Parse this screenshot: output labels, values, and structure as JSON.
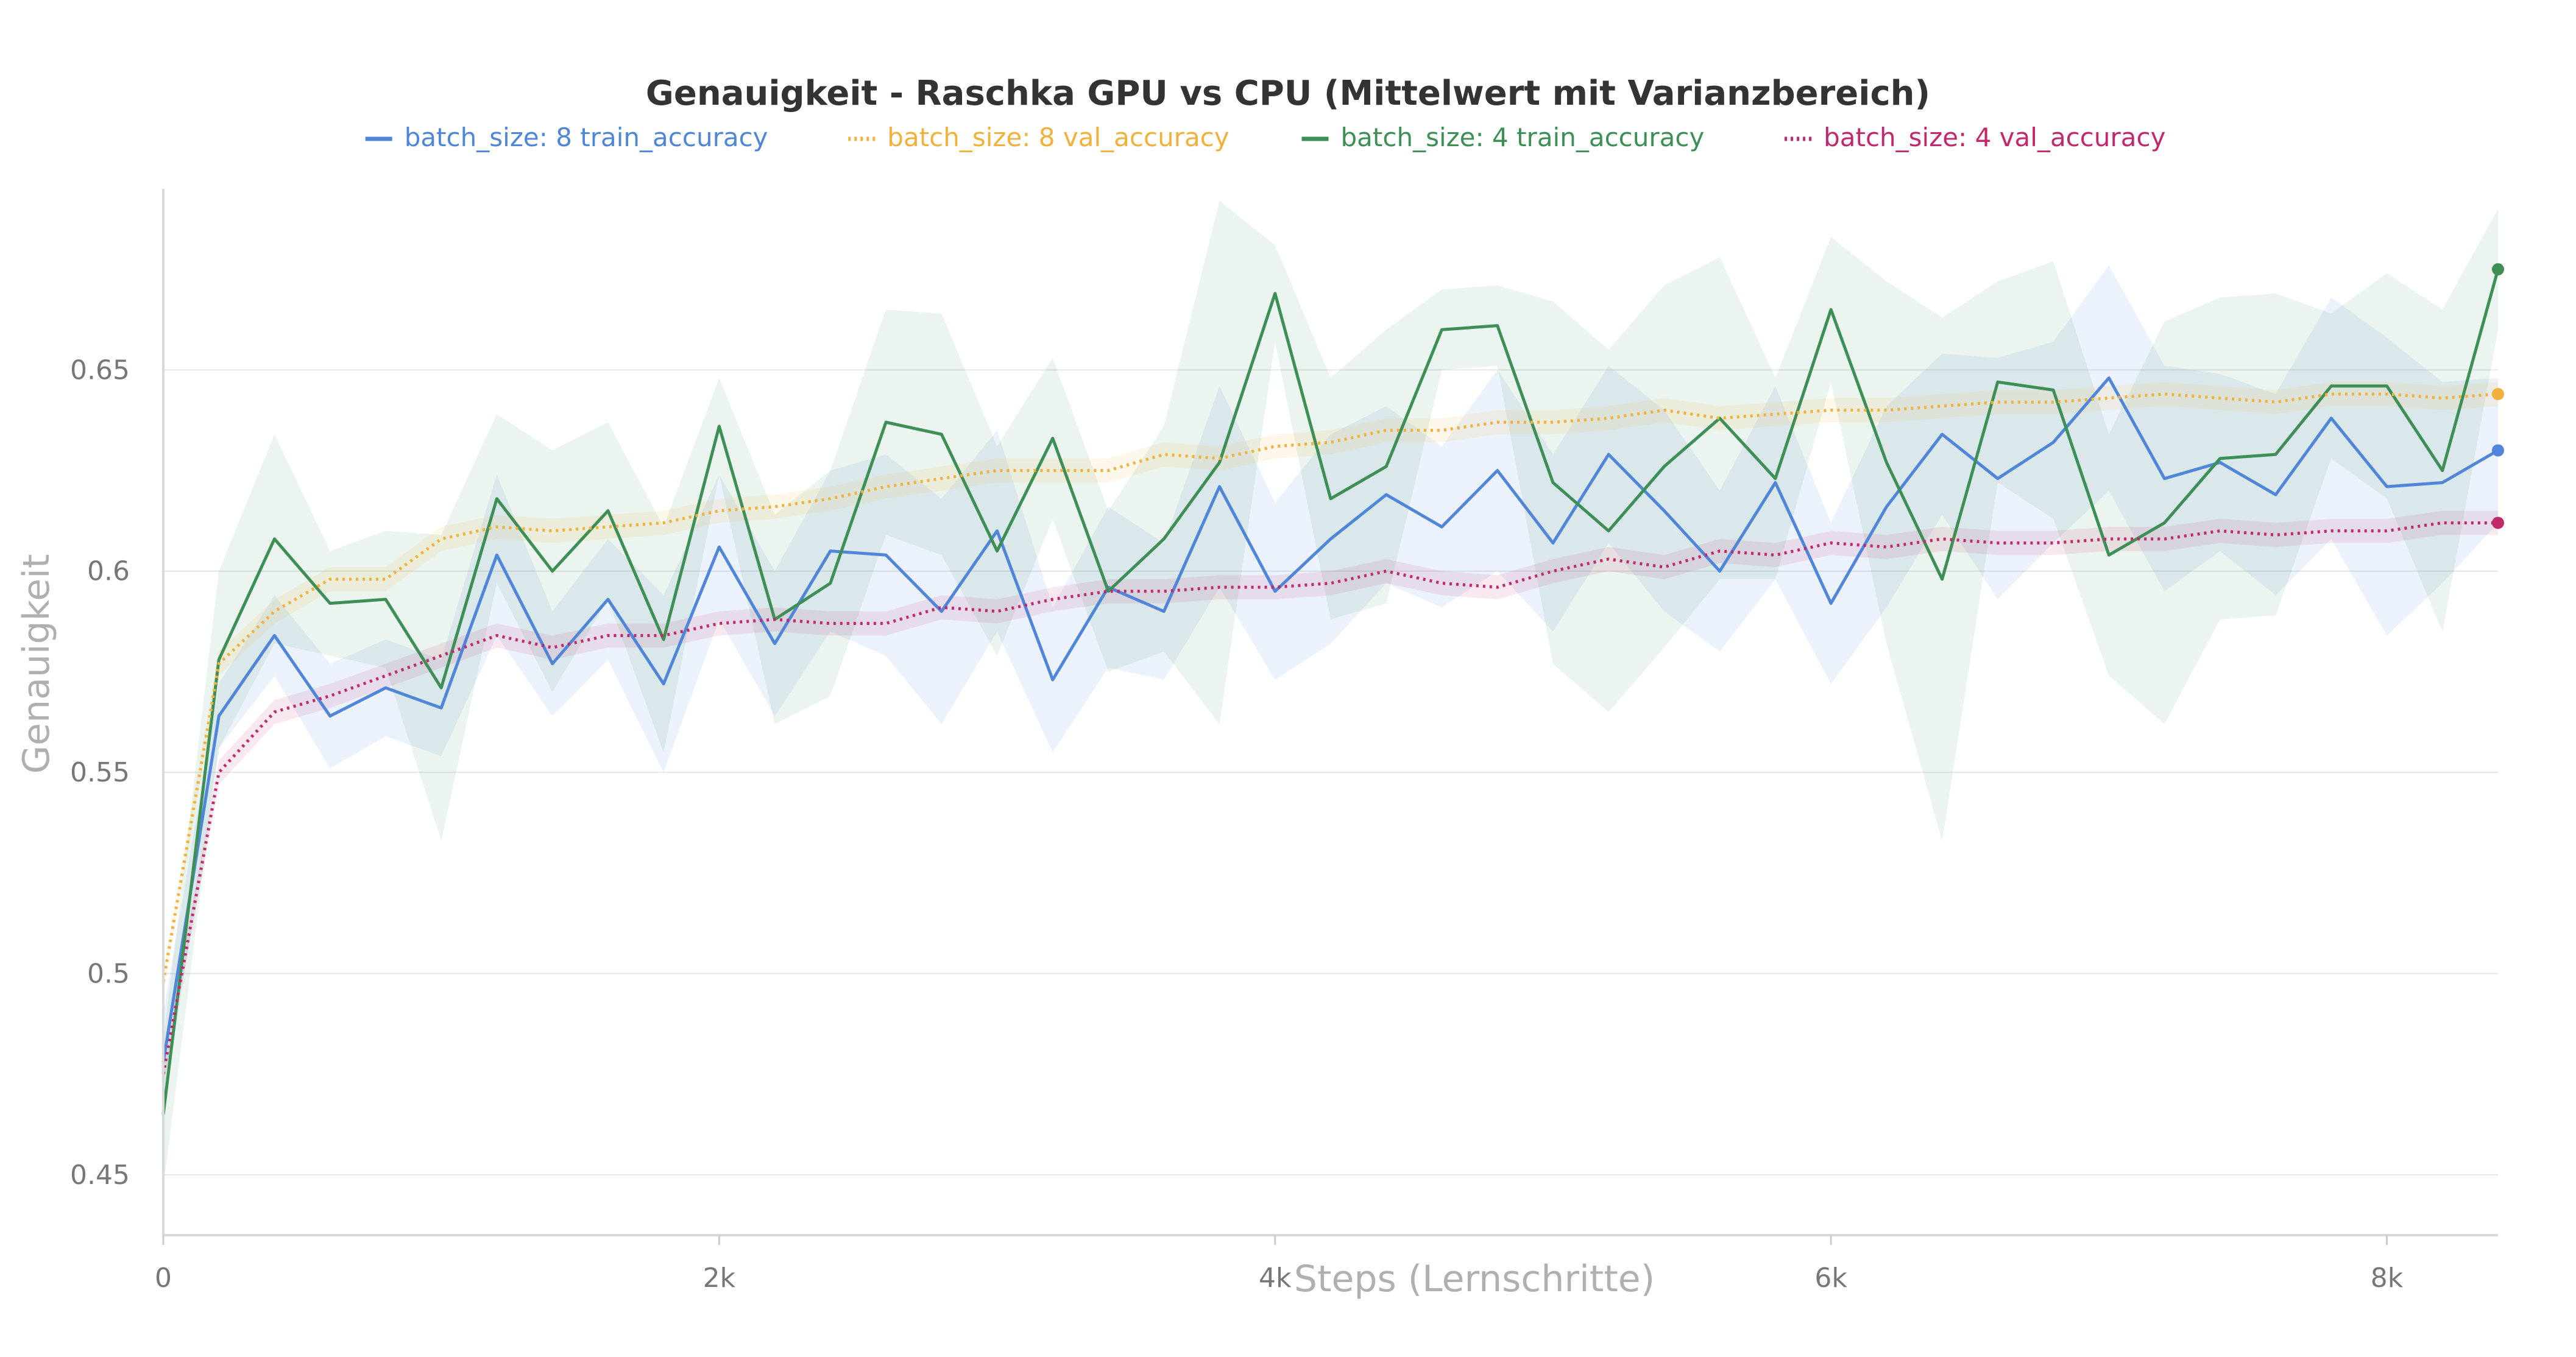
{
  "chart_data": {
    "type": "line",
    "title": "Genauigkeit - Raschka GPU vs CPU (Mittelwert mit Varianzbereich)",
    "xlabel": "Steps (Lernschritte)",
    "ylabel": "Genauigkeit",
    "xlim": [
      0,
      8400
    ],
    "ylim": [
      0.435,
      0.695
    ],
    "xticks": [
      0,
      2000,
      4000,
      6000,
      8000
    ],
    "xtick_labels": [
      "0",
      "2k",
      "4k",
      "6k",
      "8k"
    ],
    "yticks": [
      0.45,
      0.5,
      0.55,
      0.6,
      0.65
    ],
    "ytick_labels": [
      "0.45",
      "0.5",
      "0.55",
      "0.6",
      "0.65"
    ],
    "grid": true,
    "legend_position": "top",
    "series": [
      {
        "name": "batch_size: 8 train_accuracy",
        "color": "#4f86d9",
        "style": "solid",
        "x": [
          0,
          200,
          400,
          600,
          800,
          1000,
          1200,
          1400,
          1600,
          1800,
          2000,
          2200,
          2400,
          2600,
          2800,
          3000,
          3200,
          3400,
          3600,
          3800,
          4000,
          4200,
          4400,
          4600,
          4800,
          5000,
          5200,
          5400,
          5600,
          5800,
          6000,
          6200,
          6400,
          6600,
          6800,
          7000,
          7200,
          7400,
          7600,
          7800,
          8000,
          8200,
          8400
        ],
        "values": [
          0.478,
          0.564,
          0.584,
          0.564,
          0.571,
          0.566,
          0.604,
          0.577,
          0.593,
          0.572,
          0.606,
          0.582,
          0.605,
          0.604,
          0.59,
          0.61,
          0.573,
          0.596,
          0.59,
          0.621,
          0.595,
          0.608,
          0.619,
          0.611,
          0.625,
          0.607,
          0.629,
          0.615,
          0.6,
          0.622,
          0.592,
          0.616,
          0.634,
          0.623,
          0.632,
          0.648,
          0.623,
          0.627,
          0.619,
          0.638,
          0.621,
          0.622,
          0.63
        ],
        "band": [
          0.012,
          0.008,
          0.01,
          0.013,
          0.012,
          0.012,
          0.02,
          0.013,
          0.015,
          0.022,
          0.018,
          0.018,
          0.02,
          0.025,
          0.028,
          0.025,
          0.018,
          0.02,
          0.017,
          0.025,
          0.022,
          0.026,
          0.022,
          0.02,
          0.025,
          0.022,
          0.022,
          0.025,
          0.02,
          0.024,
          0.02,
          0.025,
          0.02,
          0.03,
          0.025,
          0.028,
          0.028,
          0.022,
          0.025,
          0.03,
          0.037,
          0.025,
          0.018
        ]
      },
      {
        "name": "batch_size: 8 val_accuracy",
        "color": "#f0b23c",
        "style": "dotted",
        "x": [
          0,
          200,
          400,
          600,
          800,
          1000,
          1200,
          1400,
          1600,
          1800,
          2000,
          2200,
          2400,
          2600,
          2800,
          3000,
          3200,
          3400,
          3600,
          3800,
          4000,
          4200,
          4400,
          4600,
          4800,
          5000,
          5200,
          5400,
          5600,
          5800,
          6000,
          6200,
          6400,
          6600,
          6800,
          7000,
          7200,
          7400,
          7600,
          7800,
          8000,
          8200,
          8400
        ],
        "values": [
          0.498,
          0.577,
          0.59,
          0.598,
          0.598,
          0.608,
          0.611,
          0.61,
          0.611,
          0.612,
          0.615,
          0.616,
          0.618,
          0.621,
          0.623,
          0.625,
          0.625,
          0.625,
          0.629,
          0.628,
          0.631,
          0.632,
          0.635,
          0.635,
          0.637,
          0.637,
          0.638,
          0.64,
          0.638,
          0.639,
          0.64,
          0.64,
          0.641,
          0.642,
          0.642,
          0.643,
          0.644,
          0.643,
          0.642,
          0.644,
          0.644,
          0.643,
          0.644
        ],
        "band": [
          0.003,
          0.003,
          0.003,
          0.003,
          0.003,
          0.003,
          0.003,
          0.003,
          0.003,
          0.003,
          0.003,
          0.003,
          0.003,
          0.003,
          0.003,
          0.003,
          0.003,
          0.003,
          0.003,
          0.003,
          0.003,
          0.003,
          0.003,
          0.003,
          0.003,
          0.003,
          0.003,
          0.003,
          0.003,
          0.003,
          0.003,
          0.003,
          0.003,
          0.003,
          0.003,
          0.003,
          0.003,
          0.003,
          0.003,
          0.003,
          0.003,
          0.003,
          0.003
        ]
      },
      {
        "name": "batch_size: 4 train_accuracy",
        "color": "#3d8f55",
        "style": "solid",
        "x": [
          0,
          200,
          400,
          600,
          800,
          1000,
          1200,
          1400,
          1600,
          1800,
          2000,
          2200,
          2400,
          2600,
          2800,
          3000,
          3200,
          3400,
          3600,
          3800,
          4000,
          4200,
          4400,
          4600,
          4800,
          5000,
          5200,
          5400,
          5600,
          5800,
          6000,
          6200,
          6400,
          6600,
          6800,
          7000,
          7200,
          7400,
          7600,
          7800,
          8000,
          8200,
          8400
        ],
        "values": [
          0.465,
          0.578,
          0.608,
          0.592,
          0.593,
          0.571,
          0.618,
          0.6,
          0.615,
          0.583,
          0.636,
          0.588,
          0.597,
          0.637,
          0.634,
          0.605,
          0.633,
          0.595,
          0.608,
          0.627,
          0.669,
          0.618,
          0.626,
          0.66,
          0.661,
          0.622,
          0.61,
          0.626,
          0.638,
          0.623,
          0.665,
          0.627,
          0.598,
          0.647,
          0.645,
          0.604,
          0.612,
          0.628,
          0.629,
          0.646,
          0.646,
          0.625,
          0.675
        ],
        "band": [
          0.018,
          0.022,
          0.026,
          0.013,
          0.017,
          0.038,
          0.021,
          0.03,
          0.022,
          0.028,
          0.012,
          0.026,
          0.028,
          0.028,
          0.03,
          0.026,
          0.02,
          0.02,
          0.028,
          0.065,
          0.012,
          0.03,
          0.034,
          0.01,
          0.01,
          0.045,
          0.045,
          0.045,
          0.04,
          0.025,
          0.018,
          0.045,
          0.065,
          0.025,
          0.032,
          0.03,
          0.05,
          0.04,
          0.04,
          0.018,
          0.028,
          0.04,
          0.015
        ]
      },
      {
        "name": "batch_size: 4 val_accuracy",
        "color": "#c2296d",
        "style": "dotted",
        "x": [
          0,
          200,
          400,
          600,
          800,
          1000,
          1200,
          1400,
          1600,
          1800,
          2000,
          2200,
          2400,
          2600,
          2800,
          3000,
          3200,
          3400,
          3600,
          3800,
          4000,
          4200,
          4400,
          4600,
          4800,
          5000,
          5200,
          5400,
          5600,
          5800,
          6000,
          6200,
          6400,
          6600,
          6800,
          7000,
          7200,
          7400,
          7600,
          7800,
          8000,
          8200,
          8400
        ],
        "values": [
          0.475,
          0.55,
          0.565,
          0.569,
          0.574,
          0.579,
          0.584,
          0.581,
          0.584,
          0.584,
          0.587,
          0.588,
          0.587,
          0.587,
          0.591,
          0.59,
          0.593,
          0.595,
          0.595,
          0.596,
          0.596,
          0.597,
          0.6,
          0.597,
          0.596,
          0.6,
          0.603,
          0.601,
          0.605,
          0.604,
          0.607,
          0.606,
          0.608,
          0.607,
          0.607,
          0.608,
          0.608,
          0.61,
          0.609,
          0.61,
          0.61,
          0.612,
          0.612
        ],
        "band": [
          0.003,
          0.003,
          0.003,
          0.003,
          0.003,
          0.003,
          0.003,
          0.003,
          0.003,
          0.003,
          0.003,
          0.003,
          0.003,
          0.003,
          0.003,
          0.003,
          0.003,
          0.003,
          0.003,
          0.003,
          0.003,
          0.003,
          0.003,
          0.003,
          0.003,
          0.003,
          0.003,
          0.003,
          0.003,
          0.003,
          0.003,
          0.003,
          0.003,
          0.003,
          0.003,
          0.003,
          0.003,
          0.003,
          0.003,
          0.003,
          0.003,
          0.003,
          0.003
        ]
      }
    ]
  }
}
